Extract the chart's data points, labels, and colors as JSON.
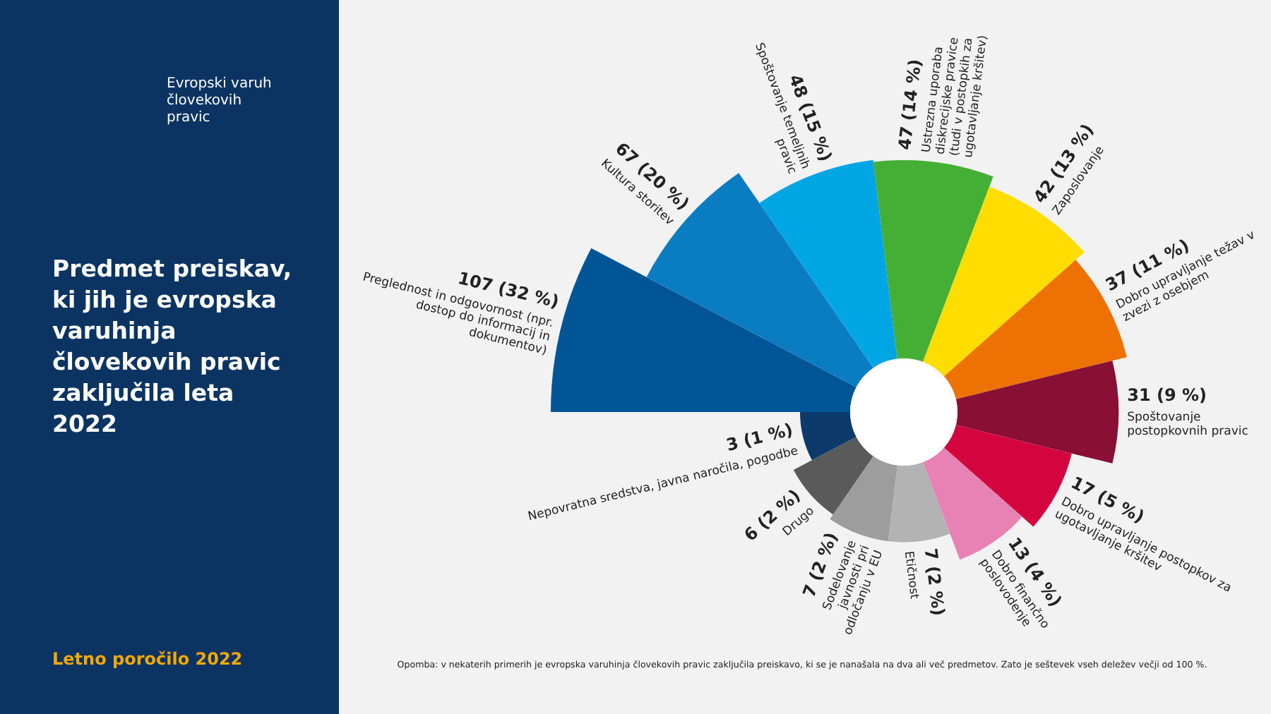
{
  "chart_data": {
    "type": "other",
    "title": "Predmet preiskav, ki jih je evropska varuhinja človekovih pravic zaključila leta 2022",
    "categories": [
      "Preglednost in odgovornost (npr. dostop do informacij in dokumentov)",
      "Kultura storitev",
      "Spoštovanje temeljnih pravic",
      "Ustrezna uporaba diskrecijske pravice (tudi v postopkih za ugotavljanje kršitev)",
      "Zaposlovanje",
      "Dobro upravljanje težav v zvezi z osebjem",
      "Spoštovanje postopkovnih pravic",
      "Dobro upravljanje postopkov za ugotavljanje kršitev",
      "Dobro finančno poslovodenje",
      "Etičnost",
      "Sodelovanje javnosti pri odločanju v EU",
      "Drugo",
      "Nepovratna sredstva, javna naročila, pogodbe"
    ],
    "values": [
      107,
      67,
      48,
      47,
      42,
      37,
      31,
      17,
      13,
      7,
      7,
      6,
      3
    ],
    "value_labels": [
      "107 (32 %)",
      "67 (20 %)",
      "48 (15 %)",
      "47 (14 %)",
      "42 (13 %)",
      "37 (11 %)",
      "31 (9 %)",
      "17 (5 %)",
      "13 (4 %)",
      "7 (2 %)",
      "7 (2 %)",
      "6 (2 %)",
      "3 (1 %)"
    ],
    "colors": [
      "#005596",
      "#0a7cc1",
      "#00a5e3",
      "#45ae35",
      "#ffdd00",
      "#ee7203",
      "#8a0f35",
      "#d4043f",
      "#e882b4",
      "#b3b3b3",
      "#9d9d9d",
      "#5a5a5a",
      "#0b3a6b"
    ],
    "annotations": [
      "Opomba: v nekaterih primerih je evropska varuhinja človekovih pravic zaključila preiskavo, ki se je nanašala na dva ali več predmetov. Zato je seštevek vseh deležev večji od 100 %.",
      "Letno poročilo 2022",
      "Evropski varuh človekovih pravic"
    ]
  }
}
